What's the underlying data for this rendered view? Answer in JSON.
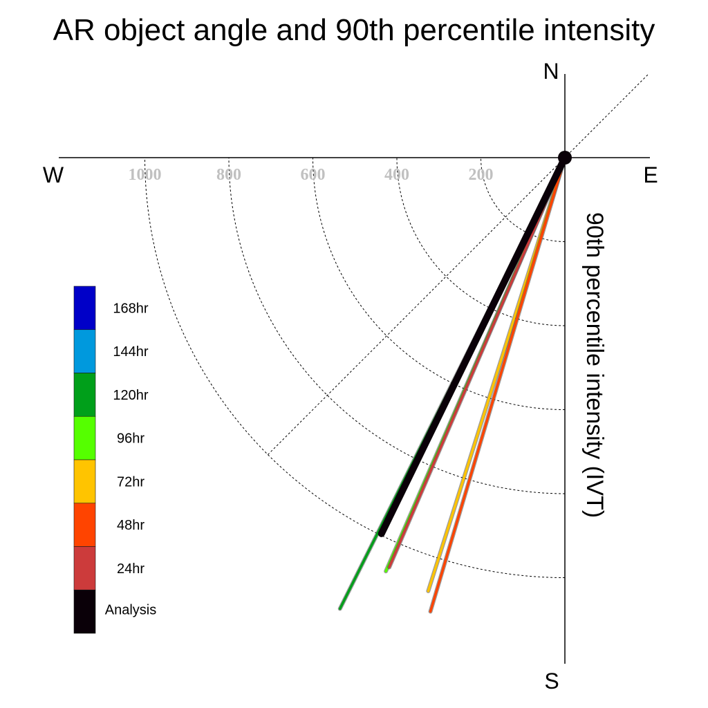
{
  "chart_data": {
    "type": "polar-vector",
    "title": "AR object angle and 90th percentile intensity",
    "radial_label": "90th percentile intensity (IVT)",
    "compass": {
      "north": "N",
      "south": "S",
      "east": "E",
      "west": "W"
    },
    "radial_ticks": [
      200,
      400,
      600,
      800,
      1000
    ],
    "rlim": [
      0,
      1200
    ],
    "grid": true,
    "legend_position": "left",
    "series": [
      {
        "name": "168hr",
        "color": "#0000c8",
        "angle_deg": null,
        "intensity": null
      },
      {
        "name": "144hr",
        "color": "#0099dd",
        "angle_deg": null,
        "intensity": null
      },
      {
        "name": "120hr",
        "color": "#009f1a",
        "angle_deg": 206.5,
        "intensity": 1200
      },
      {
        "name": "96hr",
        "color": "#55ff00",
        "angle_deg": 203.4,
        "intensity": 1073
      },
      {
        "name": "72hr",
        "color": "#ffc400",
        "angle_deg": 197.5,
        "intensity": 1082
      },
      {
        "name": "48hr",
        "color": "#ff4400",
        "angle_deg": 196.5,
        "intensity": 1127
      },
      {
        "name": "24hr",
        "color": "#cc3b3b",
        "angle_deg": 203.2,
        "intensity": 1061
      },
      {
        "name": "Analysis",
        "color": "#0a0008",
        "angle_deg": 206.0,
        "intensity": 996
      }
    ]
  }
}
